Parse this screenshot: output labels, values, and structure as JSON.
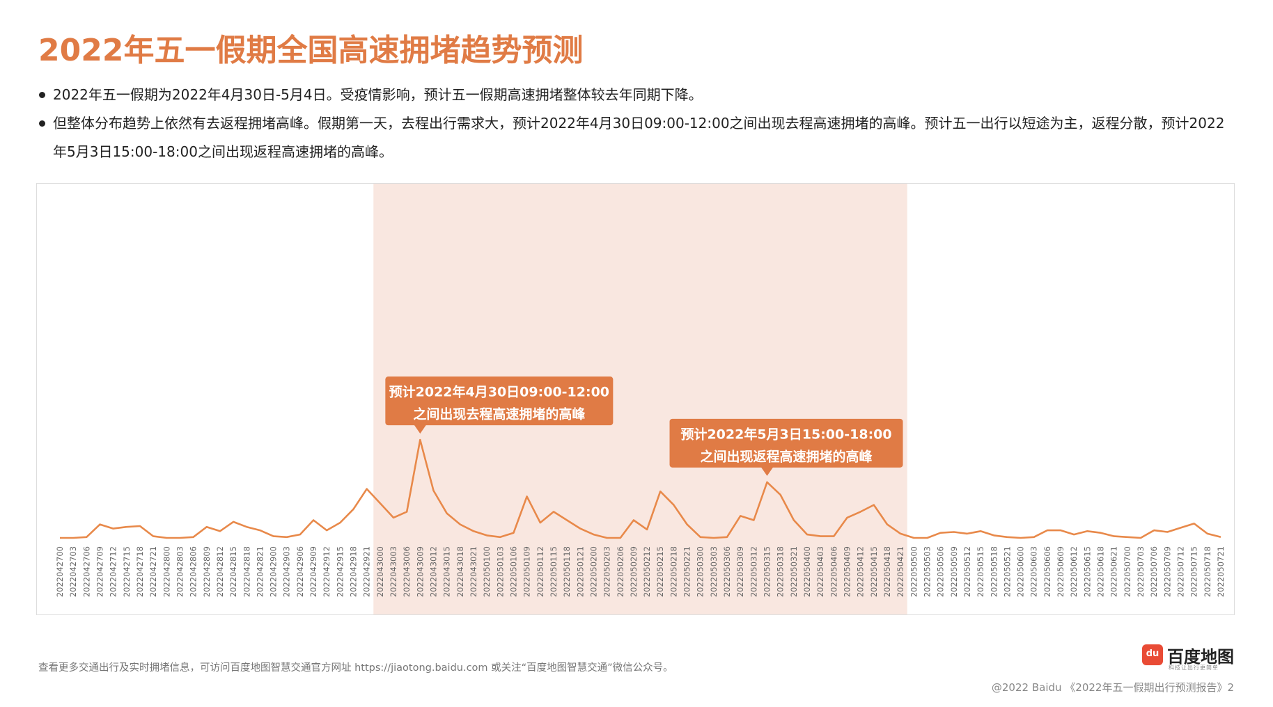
{
  "title": "2022年五一假期全国高速拥堵趋势预测",
  "bullets": [
    "2022年五一假期为2022年4月30日-5月4日。受疫情影响，预计五一假期高速拥堵整体较去年同期下降。",
    "但整体分布趋势上依然有去返程拥堵高峰。假期第一天，去程出行需求大，预计2022年4月30日09:00-12:00之间出现去程高速拥堵的高峰。预计五一出行以短途为主，返程分散，预计2022年5月3日15:00-18:00之间出现返程高速拥堵的高峰。"
  ],
  "chart_data": {
    "type": "line",
    "categories": [
      "2022042700",
      "2022042703",
      "2022042706",
      "2022042709",
      "2022042712",
      "2022042715",
      "2022042718",
      "2022042721",
      "2022042800",
      "2022042803",
      "2022042806",
      "2022042809",
      "2022042812",
      "2022042815",
      "2022042818",
      "2022042821",
      "2022042900",
      "2022042903",
      "2022042906",
      "2022042909",
      "2022042912",
      "2022042915",
      "2022042918",
      "2022042921",
      "2022043000",
      "2022043003",
      "2022043006",
      "2022043009",
      "2022043012",
      "2022043015",
      "2022043018",
      "2022043021",
      "2022050100",
      "2022050103",
      "2022050106",
      "2022050109",
      "2022050112",
      "2022050115",
      "2022050118",
      "2022050121",
      "2022050200",
      "2022050203",
      "2022050206",
      "2022050209",
      "2022050212",
      "2022050215",
      "2022050218",
      "2022050221",
      "2022050300",
      "2022050303",
      "2022050306",
      "2022050309",
      "2022050312",
      "2022050315",
      "2022050318",
      "2022050321",
      "2022050400",
      "2022050403",
      "2022050406",
      "2022050409",
      "2022050412",
      "2022050415",
      "2022050418",
      "2022050421",
      "2022050500",
      "2022050503",
      "2022050506",
      "2022050509",
      "2022050512",
      "2022050515",
      "2022050518",
      "2022050521",
      "2022050600",
      "2022050603",
      "2022050606",
      "2022050609",
      "2022050612",
      "2022050615",
      "2022050618",
      "2022050621",
      "2022050700",
      "2022050703",
      "2022050706",
      "2022050709",
      "2022050712",
      "2022050715",
      "2022050718",
      "2022050721"
    ],
    "values": [
      0,
      0,
      1,
      16,
      11,
      13,
      14,
      2,
      0,
      0,
      1,
      13,
      8,
      19,
      13,
      9,
      2,
      1,
      4,
      21,
      9,
      18,
      34,
      58,
      41,
      24,
      31,
      116,
      56,
      29,
      16,
      8,
      3,
      1,
      6,
      49,
      18,
      31,
      21,
      11,
      4,
      0,
      0,
      21,
      10,
      55,
      39,
      16,
      1,
      0,
      1,
      26,
      21,
      66,
      51,
      21,
      4,
      2,
      2,
      24,
      31,
      39,
      16,
      5,
      0,
      0,
      6,
      7,
      5,
      8,
      3,
      1,
      0,
      1,
      9,
      9,
      4,
      8,
      6,
      2,
      1,
      0,
      9,
      7,
      12,
      17,
      5,
      1
    ],
    "color": "#e8894a",
    "ylim": [
      0,
      420
    ],
    "highlight_range": [
      24,
      64
    ],
    "highlight_color": "#f9e7e0",
    "annotations": [
      {
        "lines": [
          "预计2022年4月30日09:00-12:00",
          "之间出现去程高速拥堵的高峰"
        ],
        "index": 27
      },
      {
        "lines": [
          "预计2022年5月3日15:00-18:00",
          "之间出现返程高速拥堵的高峰"
        ],
        "index": 53
      }
    ],
    "annotation_color": "#e07b45"
  },
  "footer": {
    "note": "查看更多交通出行及实时拥堵信息，可访问百度地图智慧交通官方网址 https://jiaotong.baidu.com 或关注“百度地图智慧交通”微信公众号。",
    "copyright": "@2022 Baidu 《2022年五一假期出行预测报告》2"
  },
  "logo": {
    "icon": "du",
    "name": "百度地图",
    "slogan": "科技让出行更简单"
  }
}
